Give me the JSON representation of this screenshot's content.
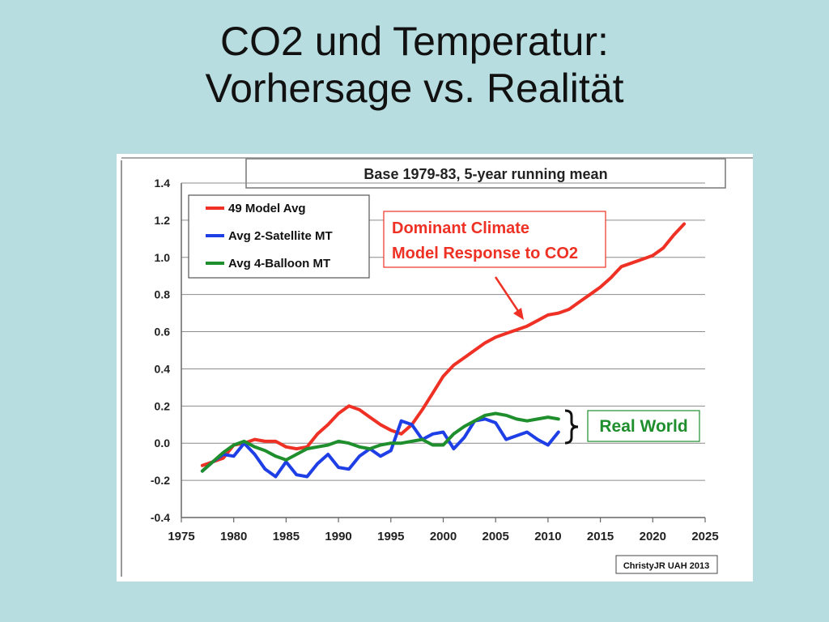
{
  "slide": {
    "title_line1": "CO2 und Temperatur:",
    "title_line2": "Vorhersage vs. Realität"
  },
  "chart_data": {
    "type": "line",
    "title": "Base 1979-83, 5-year running mean",
    "xlim": [
      1975,
      2025
    ],
    "ylim": [
      -0.4,
      1.4
    ],
    "x_ticks": [
      1975,
      1980,
      1985,
      1990,
      1995,
      2000,
      2005,
      2010,
      2015,
      2020,
      2025
    ],
    "y_ticks": [
      -0.4,
      -0.2,
      0.0,
      0.2,
      0.4,
      0.6,
      0.8,
      1.0,
      1.2,
      1.4
    ],
    "x_tick_labels": [
      "1975",
      "1980",
      "1985",
      "1990",
      "1995",
      "2000",
      "2005",
      "2010",
      "2015",
      "2020",
      "2025"
    ],
    "y_tick_labels": [
      "-0.4",
      "-0.2",
      "0.0",
      "0.2",
      "0.4",
      "0.6",
      "0.8",
      "1.0",
      "1.2",
      "1.4"
    ],
    "grid": "horizontal",
    "legend_position": "top-left",
    "series": [
      {
        "name": "49 Model Avg",
        "color": "#ee3124",
        "x": [
          1977,
          1978,
          1979,
          1980,
          1981,
          1982,
          1983,
          1984,
          1985,
          1986,
          1987,
          1988,
          1989,
          1990,
          1991,
          1992,
          1993,
          1994,
          1995,
          1996,
          1997,
          1998,
          1999,
          2000,
          2001,
          2002,
          2003,
          2004,
          2005,
          2006,
          2007,
          2008,
          2009,
          2010,
          2011,
          2012,
          2013,
          2014,
          2015,
          2016,
          2017,
          2018,
          2019,
          2020,
          2021,
          2022,
          2023
        ],
        "values": [
          -0.12,
          -0.1,
          -0.08,
          -0.01,
          0.0,
          0.02,
          0.01,
          0.01,
          -0.02,
          -0.03,
          -0.02,
          0.05,
          0.1,
          0.16,
          0.2,
          0.18,
          0.14,
          0.1,
          0.07,
          0.05,
          0.1,
          0.18,
          0.27,
          0.36,
          0.42,
          0.46,
          0.5,
          0.54,
          0.57,
          0.59,
          0.61,
          0.63,
          0.66,
          0.69,
          0.7,
          0.72,
          0.76,
          0.8,
          0.84,
          0.89,
          0.95,
          0.97,
          0.99,
          1.01,
          1.05,
          1.12,
          1.18
        ]
      },
      {
        "name": "Avg 2-Satellite MT",
        "color": "#1f3fe6",
        "x": [
          1977,
          1978,
          1979,
          1980,
          1981,
          1982,
          1983,
          1984,
          1985,
          1986,
          1987,
          1988,
          1989,
          1990,
          1991,
          1992,
          1993,
          1994,
          1995,
          1996,
          1997,
          1998,
          1999,
          2000,
          2001,
          2002,
          2003,
          2004,
          2005,
          2006,
          2007,
          2008,
          2009,
          2010,
          2011
        ],
        "values": [
          -0.15,
          -0.1,
          -0.06,
          -0.07,
          0.0,
          -0.06,
          -0.14,
          -0.18,
          -0.1,
          -0.17,
          -0.18,
          -0.11,
          -0.06,
          -0.13,
          -0.14,
          -0.07,
          -0.03,
          -0.07,
          -0.04,
          0.12,
          0.1,
          0.02,
          0.05,
          0.06,
          -0.03,
          0.03,
          0.12,
          0.13,
          0.11,
          0.02,
          0.04,
          0.06,
          0.02,
          -0.01,
          0.06
        ]
      },
      {
        "name": "Avg 4-Balloon MT",
        "color": "#1f8e2d",
        "x": [
          1977,
          1978,
          1979,
          1980,
          1981,
          1982,
          1983,
          1984,
          1985,
          1986,
          1987,
          1988,
          1989,
          1990,
          1991,
          1992,
          1993,
          1994,
          1995,
          1996,
          1997,
          1998,
          1999,
          2000,
          2001,
          2002,
          2003,
          2004,
          2005,
          2006,
          2007,
          2008,
          2009,
          2010,
          2011
        ],
        "values": [
          -0.15,
          -0.1,
          -0.05,
          -0.01,
          0.01,
          -0.02,
          -0.04,
          -0.07,
          -0.09,
          -0.06,
          -0.03,
          -0.02,
          -0.01,
          0.01,
          0.0,
          -0.02,
          -0.03,
          -0.01,
          0.0,
          0.0,
          0.01,
          0.02,
          -0.01,
          -0.01,
          0.05,
          0.09,
          0.12,
          0.15,
          0.16,
          0.15,
          0.13,
          0.12,
          0.13,
          0.14,
          0.13
        ]
      }
    ],
    "annotations": {
      "model_response_line1": "Dominant Climate",
      "model_response_line2": "Model Response to CO2",
      "real_world": "Real World",
      "credit": "ChristyJR UAH 2013"
    }
  }
}
